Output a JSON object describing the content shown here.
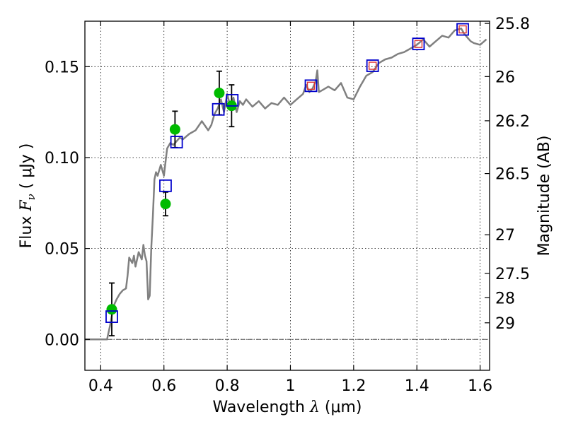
{
  "chart_data": {
    "type": "scatter",
    "xlabel": "Wavelength",
    "xlabel_symbol": "λ",
    "xlabel_unit": "(μm)",
    "ylabel": "Flux",
    "ylabel_symbol": "F",
    "ylabel_sub": "ν",
    "ylabel_unit": "( μJy )",
    "y2label": "Magnitude (AB)",
    "xlim": [
      0.35,
      1.63
    ],
    "ylim": [
      -0.017,
      0.175
    ],
    "xticks": [
      0.4,
      0.6,
      0.8,
      1.0,
      1.2,
      1.4,
      1.6
    ],
    "xtick_labels": [
      "0.4",
      "0.6",
      "0.8",
      "1",
      "1.2",
      "1.4",
      "1.6"
    ],
    "yticks": [
      0.0,
      0.05,
      0.1,
      0.15
    ],
    "ytick_labels": [
      "0.00",
      "0.05",
      "0.10",
      "0.15"
    ],
    "mag_ticks": [
      {
        "mag": 25.8,
        "label": "25.8"
      },
      {
        "mag": 26.0,
        "label": "26"
      },
      {
        "mag": 26.2,
        "label": "26.2"
      },
      {
        "mag": 26.5,
        "label": "26.5"
      },
      {
        "mag": 27.0,
        "label": "27"
      },
      {
        "mag": 27.5,
        "label": "27.5"
      },
      {
        "mag": 28.0,
        "label": "28"
      },
      {
        "mag": 29.0,
        "label": "29"
      }
    ],
    "grid": true,
    "colors": {
      "model": "#808080",
      "observed": "#00bb00",
      "model_phot": "#0000cc",
      "model_phot_inner": "#dd3333",
      "errorbar": "#000000",
      "zero_line": "#555555"
    },
    "series": [
      {
        "name": "model_spectrum",
        "kind": "line",
        "x": [
          0.35,
          0.42,
          0.43,
          0.44,
          0.45,
          0.46,
          0.47,
          0.48,
          0.485,
          0.49,
          0.5,
          0.505,
          0.51,
          0.52,
          0.53,
          0.535,
          0.54,
          0.545,
          0.55,
          0.555,
          0.56,
          0.565,
          0.57,
          0.575,
          0.58,
          0.59,
          0.6,
          0.61,
          0.62,
          0.63,
          0.64,
          0.65,
          0.66,
          0.68,
          0.7,
          0.72,
          0.74,
          0.75,
          0.76,
          0.77,
          0.78,
          0.79,
          0.8,
          0.81,
          0.82,
          0.83,
          0.84,
          0.85,
          0.86,
          0.88,
          0.9,
          0.92,
          0.94,
          0.96,
          0.98,
          1.0,
          1.02,
          1.04,
          1.05,
          1.06,
          1.07,
          1.08,
          1.085,
          1.09,
          1.1,
          1.12,
          1.14,
          1.16,
          1.18,
          1.2,
          1.22,
          1.24,
          1.26,
          1.28,
          1.3,
          1.32,
          1.34,
          1.36,
          1.38,
          1.4,
          1.42,
          1.44,
          1.46,
          1.48,
          1.5,
          1.52,
          1.54,
          1.55,
          1.56,
          1.57,
          1.58,
          1.6,
          1.62
        ],
        "y": [
          0.0,
          0.0,
          0.008,
          0.018,
          0.022,
          0.025,
          0.027,
          0.028,
          0.035,
          0.045,
          0.042,
          0.046,
          0.04,
          0.048,
          0.044,
          0.052,
          0.046,
          0.043,
          0.022,
          0.024,
          0.05,
          0.068,
          0.088,
          0.092,
          0.09,
          0.096,
          0.09,
          0.105,
          0.108,
          0.107,
          0.109,
          0.111,
          0.11,
          0.113,
          0.115,
          0.12,
          0.115,
          0.118,
          0.124,
          0.127,
          0.132,
          0.125,
          0.135,
          0.128,
          0.133,
          0.125,
          0.131,
          0.129,
          0.132,
          0.128,
          0.131,
          0.127,
          0.13,
          0.129,
          0.133,
          0.129,
          0.132,
          0.135,
          0.14,
          0.136,
          0.138,
          0.142,
          0.148,
          0.136,
          0.137,
          0.139,
          0.137,
          0.141,
          0.133,
          0.132,
          0.139,
          0.145,
          0.147,
          0.152,
          0.154,
          0.155,
          0.157,
          0.158,
          0.16,
          0.162,
          0.165,
          0.161,
          0.164,
          0.167,
          0.166,
          0.17,
          0.171,
          0.168,
          0.166,
          0.164,
          0.163,
          0.162,
          0.165
        ]
      },
      {
        "name": "observed_flux",
        "kind": "points_with_errors",
        "x": [
          0.435,
          0.605,
          0.635,
          0.775,
          0.814
        ],
        "y": [
          0.0165,
          0.0745,
          0.1155,
          0.1355,
          0.1285
        ],
        "yerr": [
          0.0145,
          0.0065,
          0.01,
          0.012,
          0.0115
        ]
      },
      {
        "name": "model_photometry",
        "kind": "open_squares",
        "x": [
          0.435,
          0.605,
          0.64,
          0.772,
          0.816,
          1.065,
          1.26,
          1.405,
          1.545
        ],
        "y": [
          0.0125,
          0.0845,
          0.1085,
          0.1265,
          0.1315,
          0.1395,
          0.1505,
          0.1625,
          0.1705
        ]
      },
      {
        "name": "model_photometry_inner",
        "kind": "small_squares",
        "x": [
          1.065,
          1.26,
          1.405,
          1.545
        ],
        "y": [
          0.1395,
          0.1505,
          0.1625,
          0.1705
        ]
      }
    ]
  }
}
